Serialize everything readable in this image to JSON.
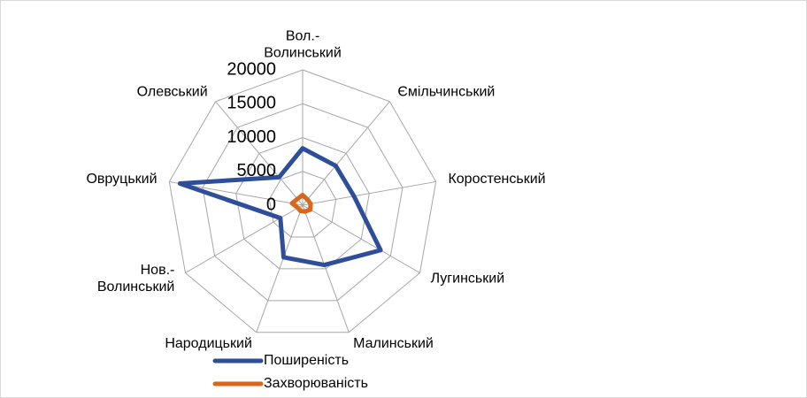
{
  "chart_data": {
    "type": "radar",
    "categories": [
      "Вол.-\nВолинський",
      "Ємільчинський",
      "Коростенський",
      "Лугинський",
      "Малинський",
      "Народицький",
      "Нов.-\nВолинський",
      "Овруцький",
      "Олевський"
    ],
    "series": [
      {
        "name": "Поширеність",
        "color": "#2e4e9a",
        "values": [
          8400,
          7600,
          7700,
          13300,
          9400,
          8200,
          3800,
          18400,
          5400
        ]
      },
      {
        "name": "Захворюваність",
        "color": "#d8661c",
        "values": [
          1500,
          1100,
          1200,
          1300,
          1000,
          900,
          800,
          1600,
          1200
        ]
      }
    ],
    "rlim": [
      0,
      20000
    ],
    "rticks": [
      0,
      5000,
      10000,
      15000,
      20000
    ],
    "grid": true
  }
}
